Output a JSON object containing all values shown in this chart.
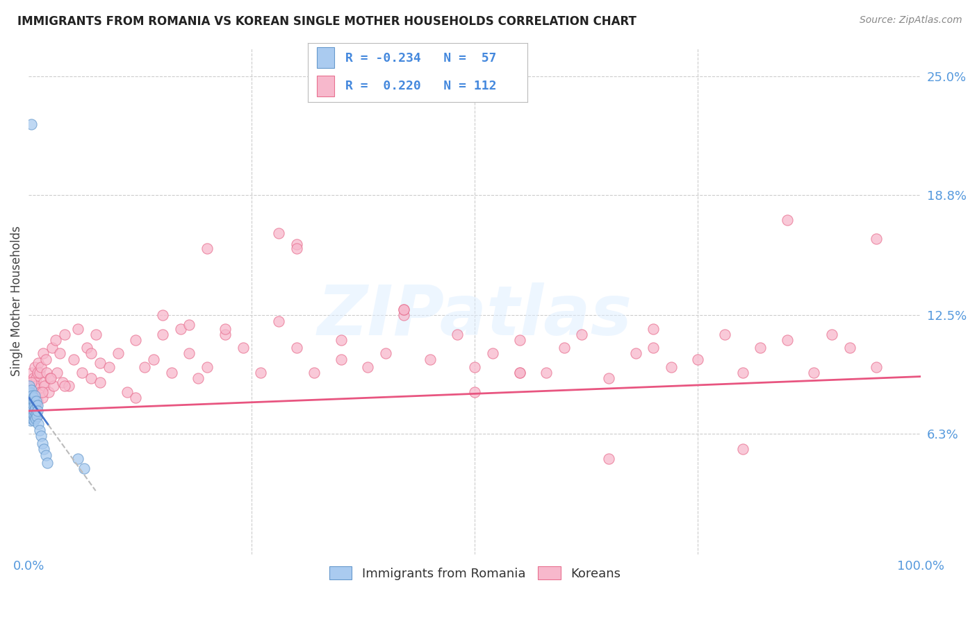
{
  "title": "IMMIGRANTS FROM ROMANIA VS KOREAN SINGLE MOTHER HOUSEHOLDS CORRELATION CHART",
  "source": "Source: ZipAtlas.com",
  "ylabel": "Single Mother Households",
  "xlim": [
    0.0,
    100.0
  ],
  "ylim": [
    0.0,
    26.5
  ],
  "ytick_positions": [
    6.3,
    12.5,
    18.8,
    25.0
  ],
  "ytick_labels": [
    "6.3%",
    "12.5%",
    "18.8%",
    "25.0%"
  ],
  "xtick_labels": [
    "0.0%",
    "100.0%"
  ],
  "legend1_label": "Immigrants from Romania",
  "legend2_label": "Koreans",
  "watermark": "ZIPatlas",
  "blue_fill": "#aacbf0",
  "pink_fill": "#f7b8cc",
  "blue_edge": "#6699cc",
  "pink_edge": "#e87090",
  "blue_line": "#4477cc",
  "pink_line": "#e85580",
  "grid_color": "#cccccc",
  "axis_tick_color": "#5599dd",
  "title_color": "#222222",
  "source_color": "#888888",
  "legend_text_color": "#4488dd",
  "romania_R": -0.234,
  "romania_N": 57,
  "korea_R": 0.22,
  "korea_N": 112,
  "romania_x": [
    0.05,
    0.07,
    0.08,
    0.09,
    0.1,
    0.11,
    0.12,
    0.13,
    0.14,
    0.15,
    0.16,
    0.17,
    0.18,
    0.19,
    0.2,
    0.22,
    0.23,
    0.25,
    0.26,
    0.28,
    0.3,
    0.31,
    0.33,
    0.35,
    0.37,
    0.38,
    0.4,
    0.42,
    0.44,
    0.46,
    0.48,
    0.5,
    0.52,
    0.55,
    0.57,
    0.6,
    0.62,
    0.65,
    0.68,
    0.7,
    0.72,
    0.75,
    0.8,
    0.85,
    0.9,
    0.95,
    1.0,
    1.1,
    1.2,
    1.35,
    1.5,
    1.7,
    1.9,
    2.1,
    5.5,
    6.2,
    0.3
  ],
  "romania_y": [
    7.8,
    8.2,
    7.5,
    8.8,
    7.2,
    8.0,
    7.6,
    8.3,
    7.9,
    7.4,
    8.5,
    7.1,
    8.1,
    7.7,
    7.3,
    8.4,
    7.0,
    8.6,
    7.8,
    7.2,
    8.0,
    7.5,
    8.2,
    7.8,
    8.3,
    7.1,
    7.9,
    8.0,
    7.4,
    7.7,
    8.1,
    7.3,
    7.8,
    8.2,
    7.0,
    7.5,
    8.0,
    7.2,
    7.8,
    8.3,
    7.1,
    7.6,
    7.4,
    8.0,
    7.2,
    7.8,
    7.5,
    6.8,
    6.5,
    6.2,
    5.8,
    5.5,
    5.2,
    4.8,
    5.0,
    4.5,
    22.5
  ],
  "korea_x": [
    0.15,
    0.25,
    0.35,
    0.4,
    0.45,
    0.5,
    0.55,
    0.6,
    0.65,
    0.7,
    0.75,
    0.8,
    0.85,
    0.9,
    0.95,
    1.0,
    1.1,
    1.2,
    1.3,
    1.4,
    1.5,
    1.6,
    1.7,
    1.8,
    1.9,
    2.0,
    2.2,
    2.4,
    2.6,
    2.8,
    3.0,
    3.2,
    3.5,
    3.8,
    4.0,
    4.5,
    5.0,
    5.5,
    6.0,
    6.5,
    7.0,
    7.5,
    8.0,
    9.0,
    10.0,
    11.0,
    12.0,
    13.0,
    14.0,
    15.0,
    16.0,
    17.0,
    18.0,
    19.0,
    20.0,
    22.0,
    24.0,
    26.0,
    28.0,
    30.0,
    32.0,
    35.0,
    38.0,
    40.0,
    42.0,
    45.0,
    48.0,
    50.0,
    52.0,
    55.0,
    58.0,
    60.0,
    62.0,
    65.0,
    68.0,
    70.0,
    72.0,
    75.0,
    78.0,
    80.0,
    82.0,
    85.0,
    88.0,
    90.0,
    92.0,
    95.0,
    0.3,
    0.8,
    1.5,
    2.5,
    4.0,
    7.0,
    12.0,
    20.0,
    30.0,
    42.0,
    55.0,
    70.0,
    85.0,
    95.0,
    18.0,
    30.0,
    55.0,
    42.0,
    28.0,
    8.0,
    15.0,
    22.0,
    35.0,
    50.0,
    65.0,
    80.0
  ],
  "korea_y": [
    8.5,
    9.0,
    8.2,
    9.5,
    7.8,
    8.8,
    9.2,
    8.0,
    9.8,
    8.5,
    7.5,
    9.2,
    8.8,
    7.2,
    9.5,
    8.0,
    10.0,
    9.5,
    8.5,
    9.8,
    8.2,
    10.5,
    9.0,
    8.8,
    10.2,
    9.5,
    8.5,
    9.2,
    10.8,
    8.8,
    11.2,
    9.5,
    10.5,
    9.0,
    11.5,
    8.8,
    10.2,
    11.8,
    9.5,
    10.8,
    9.2,
    11.5,
    10.0,
    9.8,
    10.5,
    8.5,
    11.2,
    9.8,
    10.2,
    12.5,
    9.5,
    11.8,
    10.5,
    9.2,
    16.0,
    11.5,
    10.8,
    9.5,
    12.2,
    10.8,
    9.5,
    11.2,
    9.8,
    10.5,
    12.5,
    10.2,
    11.5,
    9.8,
    10.5,
    11.2,
    9.5,
    10.8,
    11.5,
    9.2,
    10.5,
    11.8,
    9.8,
    10.2,
    11.5,
    9.5,
    10.8,
    11.2,
    9.5,
    11.5,
    10.8,
    16.5,
    9.0,
    7.8,
    8.5,
    9.2,
    8.8,
    10.5,
    8.2,
    9.8,
    16.2,
    12.8,
    9.5,
    10.8,
    17.5,
    9.8,
    12.0,
    16.0,
    9.5,
    12.8,
    16.8,
    9.0,
    11.5,
    11.8,
    10.2,
    8.5,
    5.0,
    5.5
  ],
  "background_color": "#ffffff"
}
